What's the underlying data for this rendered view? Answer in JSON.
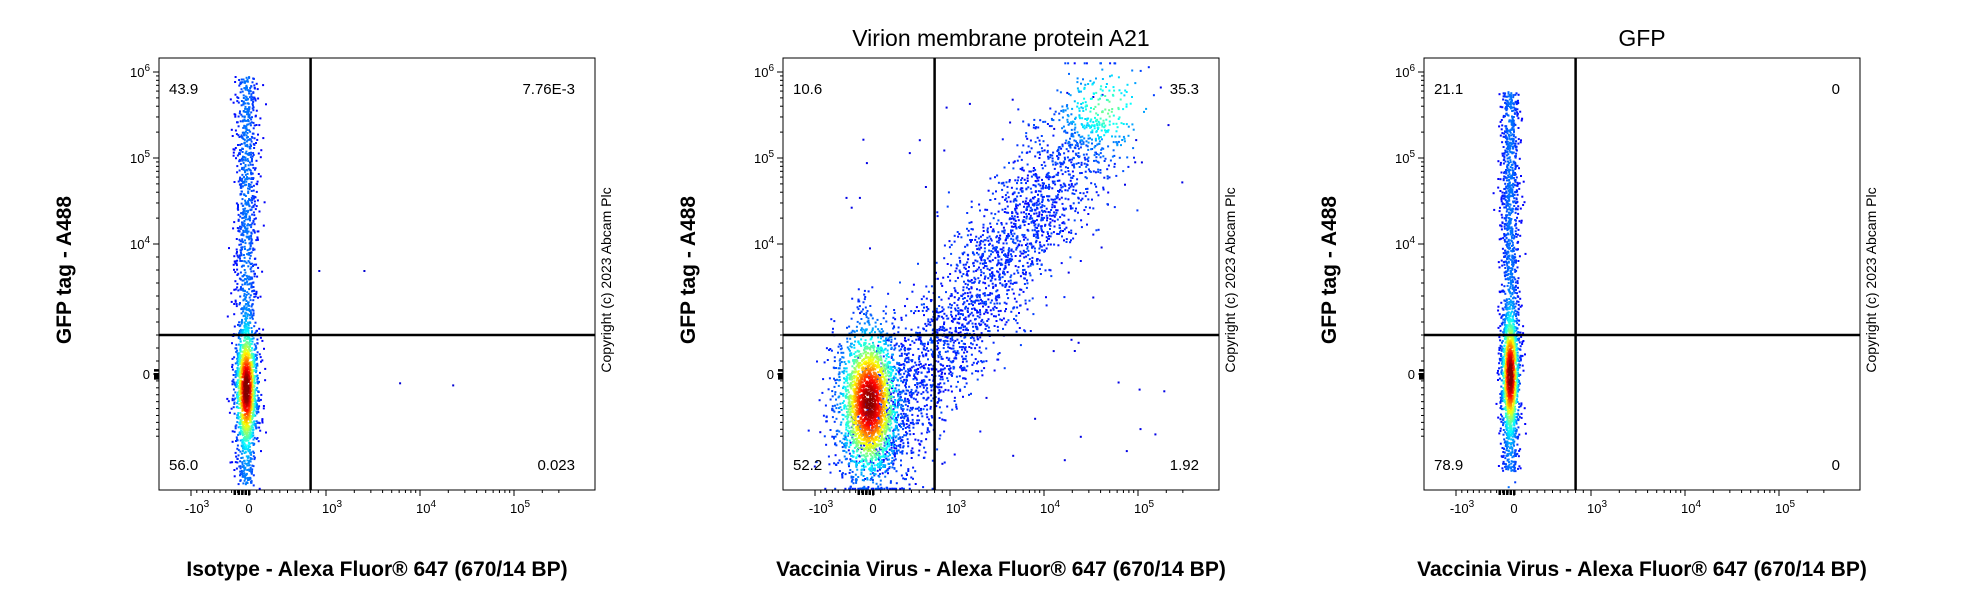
{
  "figure": {
    "copyright": "Copyright (c) 2023 Abcam Plc"
  },
  "chart_data": [
    {
      "type": "scatter",
      "subtype": "flow-cytometry-density-dot-plot",
      "title": "",
      "xlabel": "Isotype - Alexa Fluor® 647 (670/14 BP)",
      "ylabel": "GFP tag - A488",
      "x_scale": "biexponential",
      "y_scale": "biexponential",
      "x_ticks": [
        "-10^3",
        "0",
        "10^3",
        "10^4",
        "10^5"
      ],
      "y_ticks": [
        "0",
        "10^4",
        "10^5",
        "10^6"
      ],
      "gate": {
        "x": 800,
        "y": 3000
      },
      "quadrants": {
        "upper_left": "43.9",
        "upper_right": "7.76E-3",
        "lower_left": "56.0",
        "lower_right": "0.023"
      },
      "populations": [
        {
          "shape": "column",
          "x_center": -60,
          "x_spread": 170,
          "y_min": -40000,
          "y_max": 900000,
          "hot_y": -2000
        },
        {
          "shape": "outliers",
          "points": [
            [
              900,
              8000
            ],
            [
              6000,
              -1200
            ],
            [
              22000,
              -1500
            ],
            [
              2500,
              8000
            ]
          ]
        }
      ]
    },
    {
      "type": "scatter",
      "subtype": "flow-cytometry-density-dot-plot",
      "title": "Virion membrane protein A21",
      "xlabel": "Vaccinia Virus - Alexa Fluor® 647 (670/14 BP)",
      "ylabel": "GFP tag - A488",
      "x_scale": "biexponential",
      "y_scale": "biexponential",
      "x_ticks": [
        "-10^3",
        "0",
        "10^3",
        "10^4",
        "10^5"
      ],
      "y_ticks": [
        "0",
        "10^4",
        "10^5",
        "10^6"
      ],
      "gate": {
        "x": 800,
        "y": 3000
      },
      "quadrants": {
        "upper_left": "10.6",
        "upper_right": "35.3",
        "lower_left": "52.2",
        "lower_right": "1.92"
      },
      "populations": [
        {
          "shape": "diagonal",
          "x_start": -150,
          "x_end": 45000,
          "y_start": -15000,
          "y_end": 400000,
          "hot_x": -80,
          "hot_y": -4000
        }
      ]
    },
    {
      "type": "scatter",
      "subtype": "flow-cytometry-density-dot-plot",
      "title": "GFP",
      "xlabel": "Vaccinia Virus - Alexa Fluor® 647 (670/14 BP)",
      "ylabel": "GFP tag - A488",
      "x_scale": "biexponential",
      "y_scale": "biexponential",
      "x_ticks": [
        "-10^3",
        "0",
        "10^3",
        "10^4",
        "10^5"
      ],
      "y_ticks": [
        "0",
        "10^4",
        "10^5",
        "10^6"
      ],
      "gate": {
        "x": 800,
        "y": 3000
      },
      "quadrants": {
        "upper_left": "21.1",
        "upper_right": "0",
        "lower_left": "78.9",
        "lower_right": "0"
      },
      "populations": [
        {
          "shape": "column",
          "x_center": -80,
          "x_spread": 140,
          "y_min": -25000,
          "y_max": 600000,
          "hot_y": 0
        }
      ]
    }
  ]
}
